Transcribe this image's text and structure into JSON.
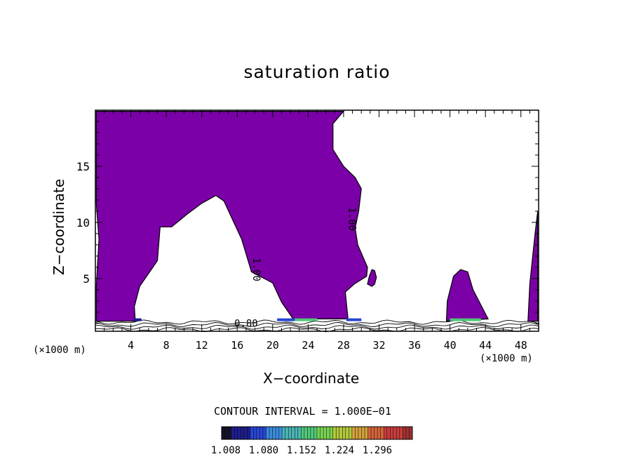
{
  "chart_data": {
    "type": "heatmap",
    "title": "saturation ratio",
    "xlabel": "X−coordinate",
    "ylabel": "Z−coordinate",
    "x_unit": "(×1000 m)",
    "x_unit_right": "(×1000 m)",
    "xlim": [
      0,
      50
    ],
    "ylim": [
      0.3,
      20
    ],
    "x_ticks": [
      4,
      8,
      12,
      16,
      20,
      24,
      28,
      32,
      36,
      40,
      44,
      48
    ],
    "y_ticks": [
      5,
      10,
      15
    ],
    "contour_interval_label": "CONTOUR INTERVAL = 1.000E−01",
    "contour_labels": [
      {
        "text": "0.80",
        "x": 17.0,
        "z": 0.7,
        "rot": 0
      },
      {
        "text": "1.00",
        "x": 17.8,
        "z": 5.8,
        "rot": 90
      },
      {
        "text": "1.00",
        "x": 28.6,
        "z": 10.3,
        "rot": 90
      }
    ],
    "colorbar": {
      "ticks": [
        "1.008",
        "1.080",
        "1.152",
        "1.224",
        "1.296"
      ],
      "colors": [
        "#141428",
        "#1e1e8c",
        "#2846d2",
        "#3c8cdc",
        "#4ab4b4",
        "#50c878",
        "#78d250",
        "#b4c83c",
        "#d2a03c",
        "#d2643c",
        "#c83c3c",
        "#a03232"
      ]
    },
    "fill_color": "#7b00a7",
    "supersaturated_regions": [
      {
        "name": "left-upper-mass",
        "outline": [
          [
            0.1,
            19.9
          ],
          [
            28,
            19.9
          ],
          [
            26.8,
            18.8
          ],
          [
            26.8,
            16.5
          ],
          [
            28,
            15
          ],
          [
            29.3,
            14
          ],
          [
            30,
            13
          ],
          [
            29.7,
            11
          ],
          [
            29.3,
            9.5
          ],
          [
            29.6,
            8
          ],
          [
            30.7,
            6
          ],
          [
            30.6,
            5.2
          ],
          [
            29.2,
            4.5
          ],
          [
            28.2,
            3.8
          ],
          [
            28.5,
            1.4
          ],
          [
            22.3,
            1.4
          ],
          [
            21,
            2.9
          ],
          [
            20,
            4.6
          ],
          [
            17.6,
            5.6
          ],
          [
            16.5,
            8.5
          ],
          [
            15.5,
            10.2
          ],
          [
            14.5,
            11.9
          ],
          [
            13.6,
            12.4
          ],
          [
            12,
            11.7
          ],
          [
            10.3,
            10.7
          ],
          [
            8.6,
            9.6
          ],
          [
            7.3,
            9.6
          ],
          [
            7,
            6.6
          ],
          [
            5,
            4.3
          ],
          [
            4.4,
            2.5
          ],
          [
            4.5,
            1.2
          ],
          [
            0.1,
            1.2
          ],
          [
            0.1,
            4.3
          ],
          [
            0.4,
            8.5
          ],
          [
            0.1,
            11.7
          ]
        ]
      },
      {
        "name": "small-blob-x32",
        "outline": [
          [
            31.2,
            4.3
          ],
          [
            31.5,
            4.5
          ],
          [
            31.7,
            5.1
          ],
          [
            31.5,
            5.7
          ],
          [
            31.2,
            5.8
          ],
          [
            30.9,
            5.2
          ],
          [
            30.7,
            4.5
          ]
        ]
      },
      {
        "name": "blob-x41",
        "outline": [
          [
            39.6,
            1.2
          ],
          [
            39.7,
            3
          ],
          [
            40.4,
            5.2
          ],
          [
            41.2,
            5.8
          ],
          [
            42,
            5.6
          ],
          [
            42.6,
            4
          ],
          [
            44.3,
            1.4
          ]
        ]
      },
      {
        "name": "right-edge-strip",
        "outline": [
          [
            48.8,
            1.2
          ],
          [
            49,
            4.5
          ],
          [
            49.6,
            9
          ],
          [
            49.9,
            11
          ],
          [
            49.9,
            1.2
          ]
        ]
      }
    ]
  }
}
